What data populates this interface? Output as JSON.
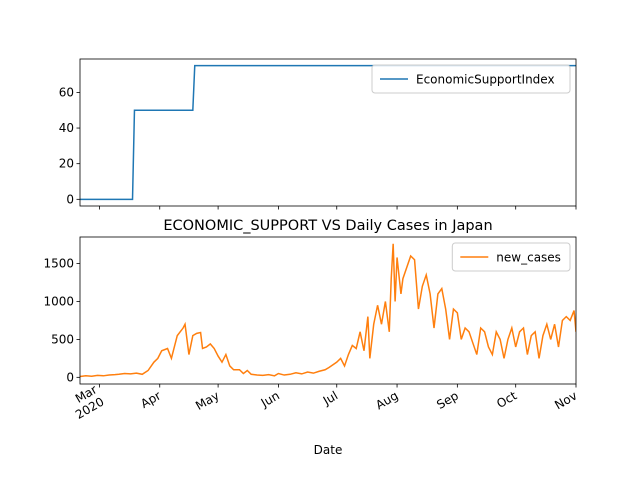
{
  "chart_data": [
    {
      "type": "line",
      "x": [
        -10,
        17,
        18,
        48,
        49,
        245
      ],
      "series": [
        {
          "name": "EconomicSupportIndex",
          "color": "#1f77b4",
          "values": [
            0,
            0,
            50,
            50,
            75,
            75
          ]
        }
      ],
      "xlim": [
        -10,
        245
      ],
      "ylim": [
        -3.75,
        78.75
      ],
      "xticks": [
        0,
        31,
        61,
        92,
        122,
        153,
        184,
        214,
        245
      ],
      "yticks": [
        0,
        20,
        40,
        60
      ],
      "legend": "upper right"
    },
    {
      "type": "line",
      "title": "ECONOMIC_SUPPORT VS Daily Cases in Japan",
      "xlabel": "Date",
      "x": [
        -10,
        -7,
        -4,
        -1,
        2,
        5,
        8,
        10,
        13,
        16,
        19,
        22,
        25,
        28,
        30,
        32,
        35,
        37,
        40,
        43,
        44,
        46,
        48,
        50,
        52,
        53,
        55,
        57,
        59,
        61,
        63,
        65,
        67,
        69,
        72,
        74,
        76,
        78,
        81,
        84,
        87,
        90,
        92,
        95,
        98,
        101,
        104,
        107,
        110,
        113,
        116,
        118,
        122,
        124,
        126,
        128,
        130,
        132,
        134,
        136,
        138,
        139,
        141,
        143,
        145,
        147,
        149,
        150,
        151,
        152,
        153,
        155,
        156,
        158,
        160,
        162,
        164,
        166,
        168,
        170,
        172,
        174,
        176,
        178,
        180,
        182,
        184,
        186,
        188,
        190,
        192,
        194,
        196,
        198,
        200,
        202,
        204,
        206,
        208,
        210,
        212,
        214,
        216,
        218,
        220,
        222,
        224,
        226,
        228,
        230,
        232,
        234,
        236,
        238,
        240,
        242,
        244,
        245
      ],
      "series": [
        {
          "name": "new_cases",
          "color": "#ff7f0e",
          "values": [
            10,
            20,
            15,
            25,
            20,
            30,
            35,
            40,
            50,
            45,
            55,
            40,
            90,
            200,
            250,
            350,
            380,
            250,
            550,
            650,
            700,
            300,
            550,
            580,
            590,
            380,
            400,
            440,
            380,
            280,
            200,
            300,
            150,
            100,
            100,
            50,
            90,
            40,
            30,
            25,
            35,
            20,
            50,
            30,
            40,
            60,
            45,
            70,
            55,
            80,
            100,
            130,
            200,
            250,
            150,
            300,
            420,
            380,
            600,
            350,
            800,
            250,
            700,
            950,
            700,
            1000,
            600,
            1300,
            1760,
            1000,
            1580,
            1100,
            1300,
            1450,
            1600,
            1550,
            900,
            1200,
            1350,
            1100,
            650,
            1100,
            1170,
            900,
            500,
            900,
            850,
            500,
            650,
            600,
            450,
            300,
            650,
            600,
            400,
            300,
            600,
            500,
            250,
            500,
            650,
            400,
            600,
            650,
            300,
            550,
            600,
            250,
            550,
            700,
            500,
            700,
            400,
            750,
            800,
            750,
            880,
            600
          ]
        }
      ],
      "xlim": [
        -10,
        245
      ],
      "ylim": [
        -88,
        1850
      ],
      "xticks": [
        {
          "value": 0,
          "label": "Mar\n2020"
        },
        {
          "value": 31,
          "label": "Apr"
        },
        {
          "value": 61,
          "label": "May"
        },
        {
          "value": 92,
          "label": "Jun"
        },
        {
          "value": 122,
          "label": "Jul"
        },
        {
          "value": 153,
          "label": "Aug"
        },
        {
          "value": 184,
          "label": "Sep"
        },
        {
          "value": 214,
          "label": "Oct"
        },
        {
          "value": 245,
          "label": "Nov"
        }
      ],
      "yticks": [
        0,
        500,
        1000,
        1500
      ],
      "legend": "upper right"
    }
  ]
}
